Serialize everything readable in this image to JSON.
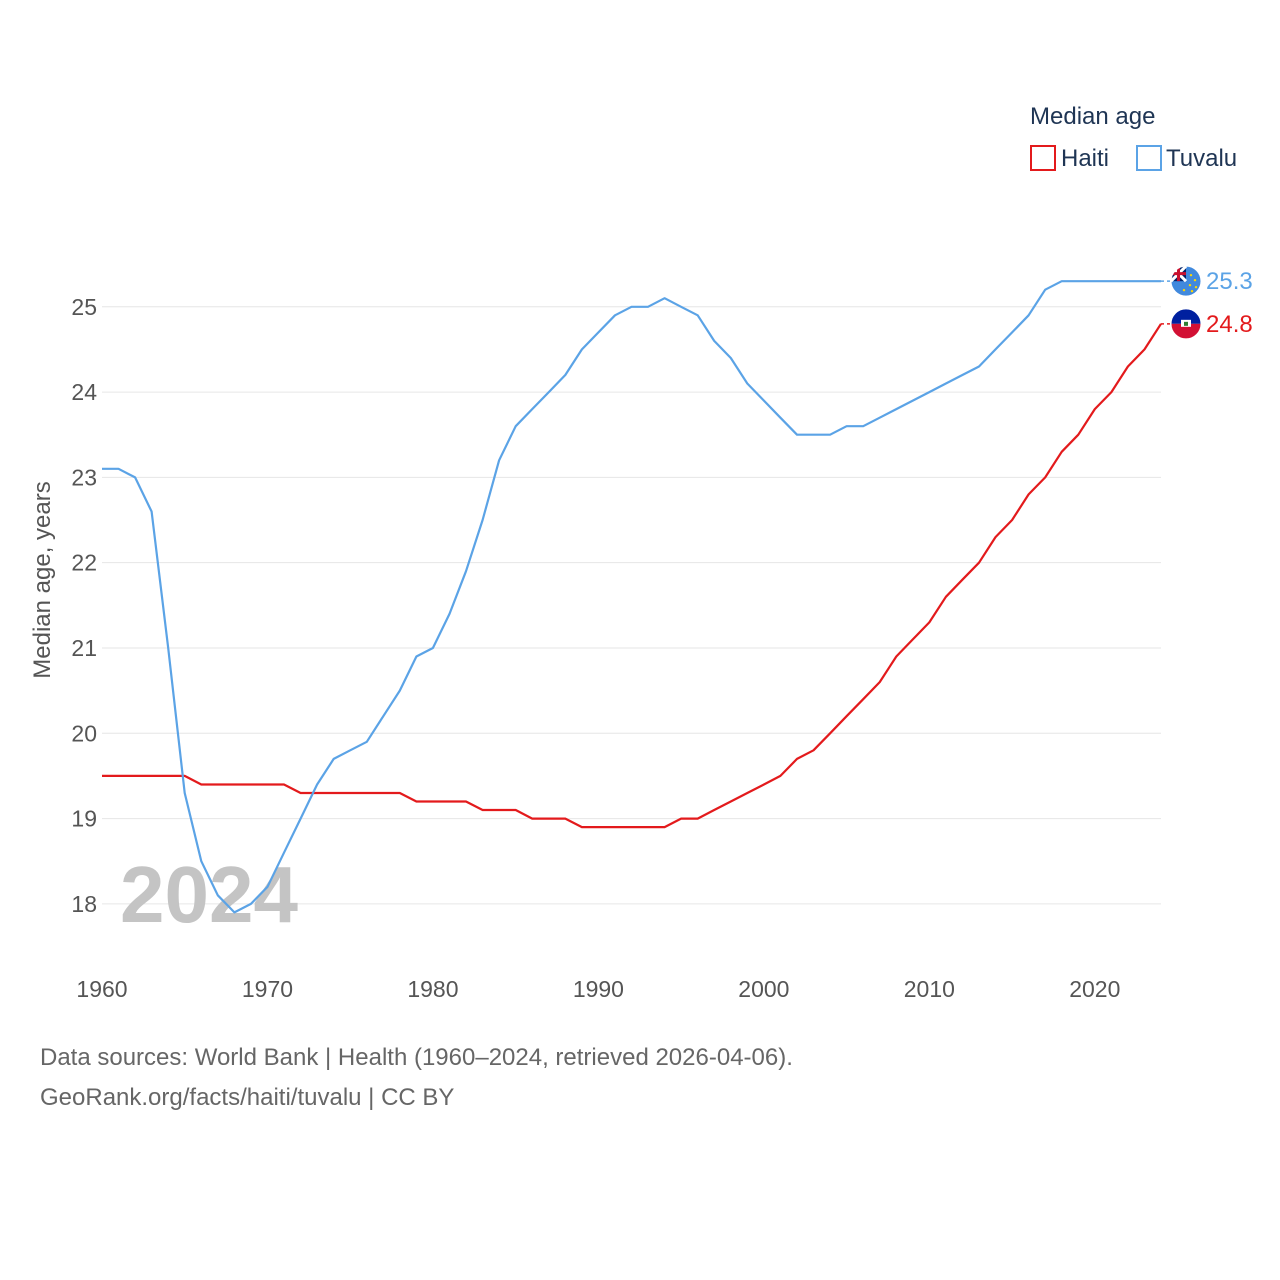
{
  "chart_data": {
    "type": "line",
    "title": "",
    "xlabel": "",
    "ylabel": "Median age, years",
    "xlim": [
      1960,
      2024
    ],
    "ylim": [
      17.6,
      25.9
    ],
    "xticks": [
      1960,
      1970,
      1980,
      1990,
      2000,
      2010,
      2020
    ],
    "yticks": [
      18,
      19,
      20,
      21,
      22,
      23,
      24,
      25
    ],
    "grid": true,
    "legend": {
      "title": "Median age",
      "position": "top-right"
    },
    "year_label": "2024",
    "x": [
      1960,
      1961,
      1962,
      1963,
      1964,
      1965,
      1966,
      1967,
      1968,
      1969,
      1970,
      1971,
      1972,
      1973,
      1974,
      1975,
      1976,
      1977,
      1978,
      1979,
      1980,
      1981,
      1982,
      1983,
      1984,
      1985,
      1986,
      1987,
      1988,
      1989,
      1990,
      1991,
      1992,
      1993,
      1994,
      1995,
      1996,
      1997,
      1998,
      1999,
      2000,
      2001,
      2002,
      2003,
      2004,
      2005,
      2006,
      2007,
      2008,
      2009,
      2010,
      2011,
      2012,
      2013,
      2014,
      2015,
      2016,
      2017,
      2018,
      2019,
      2020,
      2021,
      2022,
      2023,
      2024
    ],
    "series": [
      {
        "name": "Haiti",
        "color": "#e31a1c",
        "end_label": "24.8",
        "values": [
          19.5,
          19.5,
          19.5,
          19.5,
          19.5,
          19.5,
          19.4,
          19.4,
          19.4,
          19.4,
          19.4,
          19.4,
          19.3,
          19.3,
          19.3,
          19.3,
          19.3,
          19.3,
          19.3,
          19.2,
          19.2,
          19.2,
          19.2,
          19.1,
          19.1,
          19.1,
          19.0,
          19.0,
          19.0,
          18.9,
          18.9,
          18.9,
          18.9,
          18.9,
          18.9,
          19.0,
          19.0,
          19.1,
          19.2,
          19.3,
          19.4,
          19.5,
          19.7,
          19.8,
          20.0,
          20.2,
          20.4,
          20.6,
          20.9,
          21.1,
          21.3,
          21.6,
          21.8,
          22.0,
          22.3,
          22.5,
          22.8,
          23.0,
          23.3,
          23.5,
          23.8,
          24.0,
          24.3,
          24.5,
          24.8
        ]
      },
      {
        "name": "Tuvalu",
        "color": "#5ba3e6",
        "end_label": "25.3",
        "values": [
          23.1,
          23.1,
          23.0,
          22.6,
          21.0,
          19.3,
          18.5,
          18.1,
          17.9,
          18.0,
          18.2,
          18.6,
          19.0,
          19.4,
          19.7,
          19.8,
          19.9,
          20.2,
          20.5,
          20.9,
          21.0,
          21.4,
          21.9,
          22.5,
          23.2,
          23.6,
          23.8,
          24.0,
          24.2,
          24.5,
          24.7,
          24.9,
          25.0,
          25.0,
          25.1,
          25.0,
          24.9,
          24.6,
          24.4,
          24.1,
          23.9,
          23.7,
          23.5,
          23.5,
          23.5,
          23.6,
          23.6,
          23.7,
          23.8,
          23.9,
          24.0,
          24.1,
          24.2,
          24.3,
          24.5,
          24.7,
          24.9,
          25.2,
          25.3,
          25.3,
          25.3,
          25.3,
          25.3,
          25.3,
          25.3
        ]
      }
    ]
  },
  "footer": {
    "line1": "Data sources: World Bank | Health (1960–2024, retrieved 2026-04-06).",
    "line2": "GeoRank.org/facts/haiti/tuvalu | CC BY"
  },
  "icons": {
    "haiti_marker": "haiti-flag-icon",
    "tuvalu_marker": "tuvalu-flag-icon"
  }
}
